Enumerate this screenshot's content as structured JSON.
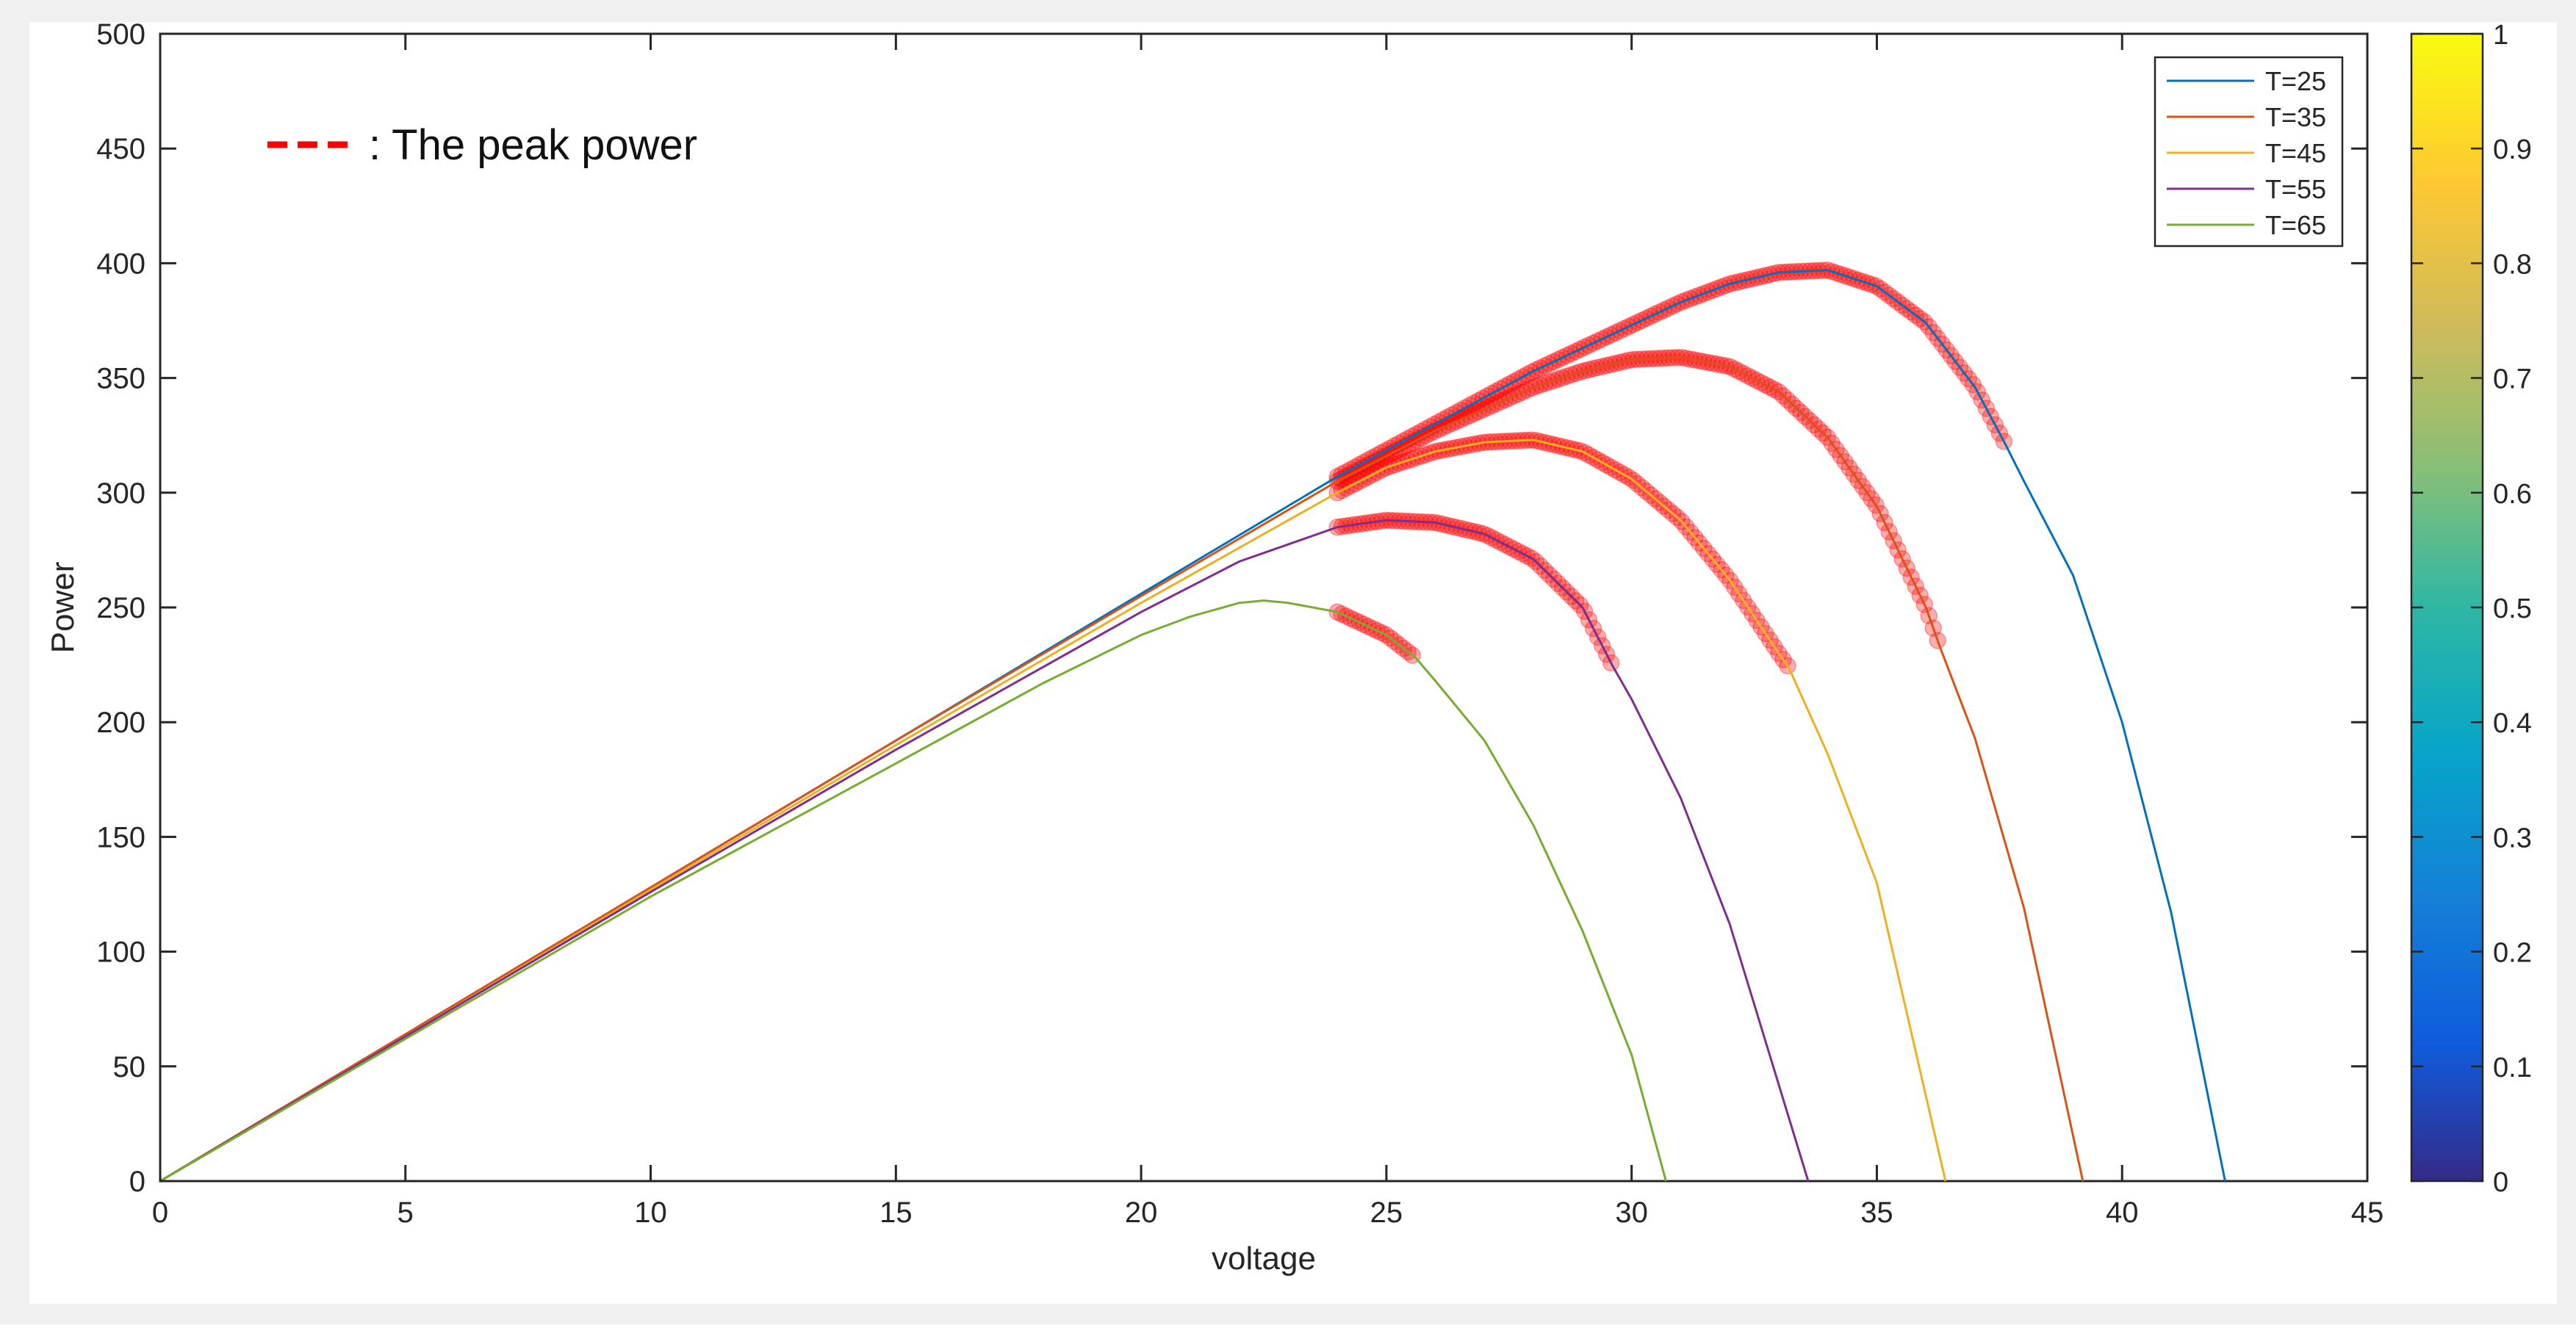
{
  "chart_data": {
    "type": "line",
    "xlabel": "voltage",
    "ylabel": "Power",
    "xlim": [
      0,
      45
    ],
    "ylim": [
      0,
      500
    ],
    "x_ticks": [
      0,
      5,
      10,
      15,
      20,
      25,
      30,
      35,
      40,
      45
    ],
    "y_ticks": [
      0,
      50,
      100,
      150,
      200,
      250,
      300,
      350,
      400,
      450,
      500
    ],
    "grid": false,
    "legend": {
      "placement": "top-right",
      "entries": [
        "T=25",
        "T=35",
        "T=45",
        "T=55",
        "T=65"
      ]
    },
    "annotation": {
      "text": ": The peak power",
      "marker_color": "#ff0000"
    },
    "series": [
      {
        "name": "T=25",
        "color": "#0072bd",
        "points": [
          [
            0,
            0
          ],
          [
            5,
            64
          ],
          [
            10,
            128
          ],
          [
            15,
            192
          ],
          [
            20,
            256
          ],
          [
            24,
            307
          ],
          [
            26,
            330
          ],
          [
            28,
            353
          ],
          [
            30,
            373
          ],
          [
            31,
            383
          ],
          [
            32,
            391
          ],
          [
            33,
            396
          ],
          [
            34,
            397
          ],
          [
            35,
            390
          ],
          [
            36,
            374
          ],
          [
            37,
            346
          ],
          [
            37.6,
            322
          ],
          [
            38,
            305
          ],
          [
            39,
            264
          ],
          [
            40,
            200
          ],
          [
            41,
            117
          ],
          [
            42.1,
            0
          ]
        ],
        "peak_from": 24,
        "peak_to": 37.6
      },
      {
        "name": "T=35",
        "color": "#d95319",
        "points": [
          [
            0,
            0
          ],
          [
            5,
            64
          ],
          [
            10,
            128
          ],
          [
            15,
            192
          ],
          [
            20,
            255
          ],
          [
            24,
            305
          ],
          [
            26,
            327
          ],
          [
            28,
            346
          ],
          [
            29,
            353
          ],
          [
            30,
            358
          ],
          [
            31,
            359
          ],
          [
            32,
            355
          ],
          [
            33,
            344
          ],
          [
            34,
            324
          ],
          [
            35,
            294
          ],
          [
            36,
            250
          ],
          [
            36.3,
            232
          ],
          [
            37,
            193
          ],
          [
            38,
            119
          ],
          [
            39.2,
            0
          ]
        ],
        "peak_from": 24,
        "peak_to": 36.3
      },
      {
        "name": "T=45",
        "color": "#edb120",
        "points": [
          [
            0,
            0
          ],
          [
            5,
            63
          ],
          [
            10,
            127
          ],
          [
            15,
            190
          ],
          [
            20,
            252
          ],
          [
            24,
            300
          ],
          [
            25,
            311
          ],
          [
            26,
            318
          ],
          [
            27,
            322
          ],
          [
            28,
            323
          ],
          [
            29,
            318
          ],
          [
            30,
            306
          ],
          [
            31,
            288
          ],
          [
            32,
            262
          ],
          [
            33,
            230
          ],
          [
            33.2,
            224
          ],
          [
            34,
            186
          ],
          [
            35,
            130
          ],
          [
            36.4,
            0
          ]
        ],
        "peak_from": 24,
        "peak_to": 33.2
      },
      {
        "name": "T=55",
        "color": "#7e2f8e",
        "points": [
          [
            0,
            0
          ],
          [
            5,
            63
          ],
          [
            10,
            126
          ],
          [
            15,
            188
          ],
          [
            20,
            248
          ],
          [
            22,
            270
          ],
          [
            24,
            285
          ],
          [
            25,
            288
          ],
          [
            26,
            287
          ],
          [
            27,
            282
          ],
          [
            28,
            271
          ],
          [
            29,
            250
          ],
          [
            29.6,
            225
          ],
          [
            30,
            210
          ],
          [
            31,
            167
          ],
          [
            32,
            112
          ],
          [
            33.6,
            0
          ]
        ],
        "peak_from": 24,
        "peak_to": 29.6
      },
      {
        "name": "T=65",
        "color": "#77ac30",
        "points": [
          [
            0,
            0
          ],
          [
            5,
            62
          ],
          [
            10,
            124
          ],
          [
            15,
            182
          ],
          [
            18,
            217
          ],
          [
            20,
            238
          ],
          [
            21,
            246
          ],
          [
            22,
            252
          ],
          [
            22.5,
            253
          ],
          [
            23,
            252
          ],
          [
            24,
            248
          ],
          [
            25,
            238
          ],
          [
            25.6,
            228
          ],
          [
            26,
            218
          ],
          [
            27,
            192
          ],
          [
            28,
            155
          ],
          [
            29,
            109
          ],
          [
            30,
            55
          ],
          [
            30.7,
            0
          ]
        ],
        "peak_from": 24,
        "peak_to": 25.6
      }
    ],
    "colorbar": {
      "range": [
        0,
        1
      ],
      "ticks": [
        0,
        0.1,
        0.2,
        0.3,
        0.4,
        0.5,
        0.6,
        0.7,
        0.8,
        0.9,
        1
      ],
      "colormap": "parula"
    }
  }
}
